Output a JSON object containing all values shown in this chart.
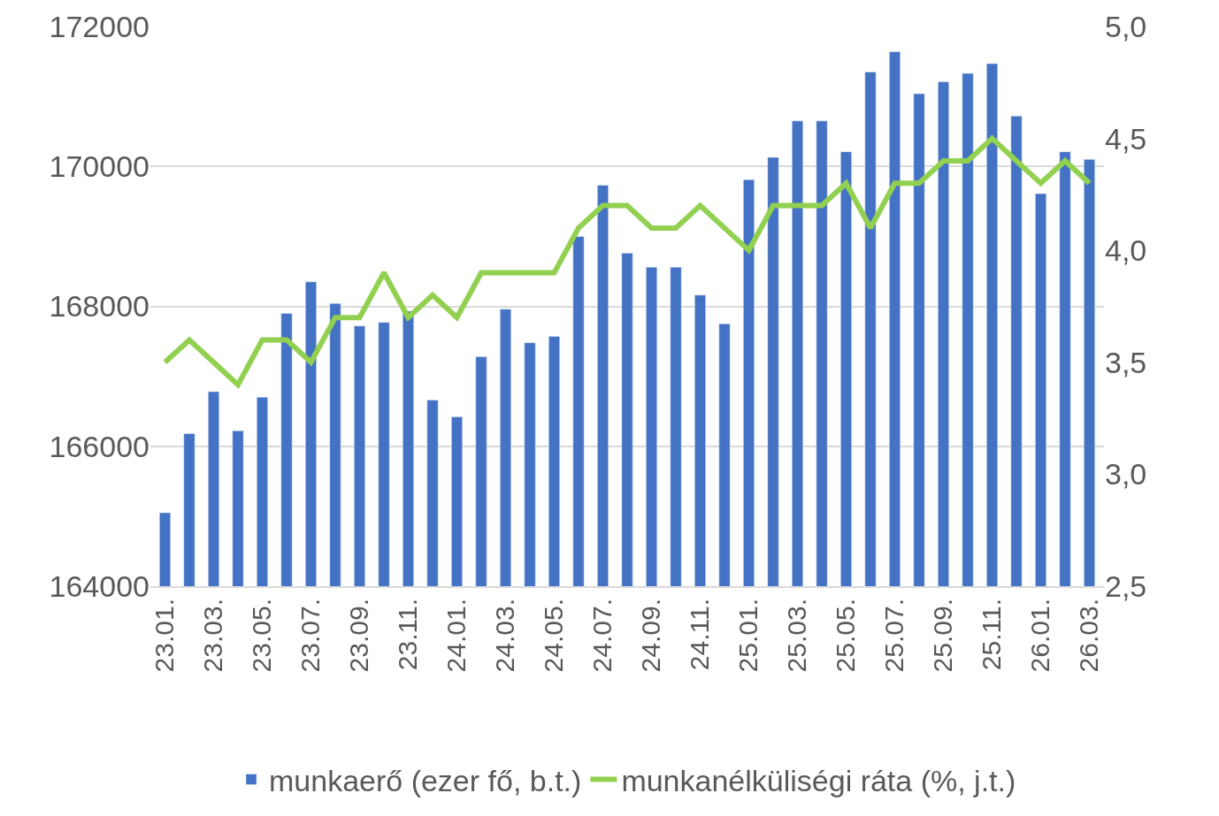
{
  "chart_data": {
    "type": "bar",
    "categories": [
      "23.01.",
      null,
      "23.03.",
      null,
      "23.05.",
      null,
      "23.07.",
      null,
      "23.09.",
      null,
      "23.11.",
      null,
      "24.01.",
      null,
      "24.03.",
      null,
      "24.05.",
      null,
      "24.07.",
      null,
      "24.09.",
      null,
      "24.11.",
      null,
      "25.01.",
      null,
      "25.03.",
      null,
      "25.05.",
      null,
      "25.07.",
      null,
      "25.09.",
      null,
      "25.11.",
      null,
      "26.01.",
      null,
      "26.03."
    ],
    "series": [
      {
        "name": "munkaerő (ezer fő, b.t.)",
        "color": "#4472c4",
        "values": [
          165050,
          166180,
          166780,
          166220,
          166700,
          167900,
          168350,
          168040,
          167720,
          167770,
          167930,
          166660,
          166420,
          167280,
          167960,
          167480,
          167570,
          169000,
          169730,
          168760,
          168560,
          168560,
          168160,
          167750,
          169810,
          170130,
          170650,
          170650,
          170210,
          171350,
          171640,
          171040,
          171210,
          171330,
          171470,
          170720,
          169610,
          170210,
          170100
        ]
      },
      {
        "name": "munkanélküliségi ráta (%, j.t.)",
        "type": "line",
        "axis": "y2",
        "color": "#92d050",
        "values": [
          3.5,
          3.6,
          3.5,
          3.4,
          3.6,
          3.6,
          3.5,
          3.7,
          3.7,
          3.9,
          3.7,
          3.8,
          3.7,
          3.9,
          3.9,
          3.9,
          3.9,
          4.1,
          4.2,
          4.2,
          4.1,
          4.1,
          4.2,
          4.1,
          4.0,
          4.2,
          4.2,
          4.2,
          4.3,
          4.1,
          4.3,
          4.3,
          4.4,
          4.4,
          4.5,
          4.4,
          4.3,
          4.4,
          4.3
        ]
      }
    ],
    "ylim": [
      164000,
      172000
    ],
    "yticks": [
      164000,
      166000,
      168000,
      170000,
      172000
    ],
    "y2lim": [
      2.5,
      5.0
    ],
    "y2ticks": [
      {
        "value": 2.5,
        "label": "2,5"
      },
      {
        "value": 3.0,
        "label": "3,0"
      },
      {
        "value": 3.5,
        "label": "3,5"
      },
      {
        "value": 4.0,
        "label": "4,0"
      },
      {
        "value": 4.5,
        "label": "4,5"
      },
      {
        "value": 5.0,
        "label": "5,0"
      }
    ],
    "grid": "y",
    "legend": "bottom",
    "marker": "none",
    "line_style": "solid"
  }
}
